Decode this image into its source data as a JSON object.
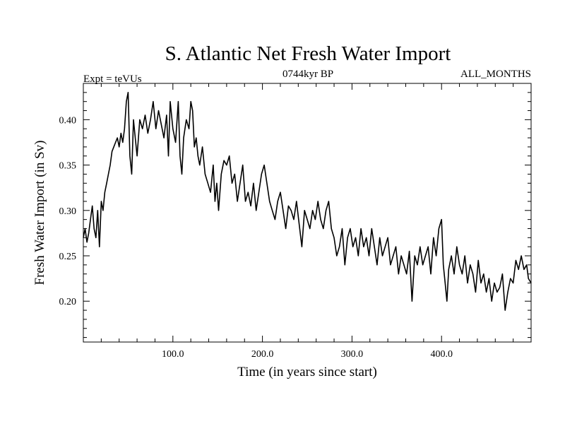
{
  "chart_data": {
    "type": "line",
    "title": "S. Atlantic Net Fresh Water Import",
    "subtitle_left": "Expt = teVUs",
    "subtitle_center": "0744kyr BP",
    "subtitle_right": "ALL_MONTHS",
    "xlabel": "Time (in years since start)",
    "ylabel": "Fresh Water Import (in Sv)",
    "xlim": [
      0,
      500
    ],
    "ylim": [
      0.155,
      0.44
    ],
    "x_ticks": [
      100,
      200,
      300,
      400
    ],
    "x_tick_labels": [
      "100.0",
      "200.0",
      "300.0",
      "400.0"
    ],
    "y_ticks": [
      0.2,
      0.25,
      0.3,
      0.35,
      0.4
    ],
    "y_tick_labels": [
      "0.20",
      "0.25",
      "0.30",
      "0.35",
      "0.40"
    ],
    "grid": false,
    "series": [
      {
        "points": [
          [
            0,
            0.27
          ],
          [
            2,
            0.28
          ],
          [
            4,
            0.265
          ],
          [
            6,
            0.275
          ],
          [
            8,
            0.29
          ],
          [
            10,
            0.305
          ],
          [
            12,
            0.28
          ],
          [
            14,
            0.27
          ],
          [
            16,
            0.3
          ],
          [
            18,
            0.26
          ],
          [
            20,
            0.31
          ],
          [
            22,
            0.3
          ],
          [
            24,
            0.32
          ],
          [
            26,
            0.33
          ],
          [
            28,
            0.34
          ],
          [
            30,
            0.35
          ],
          [
            32,
            0.365
          ],
          [
            34,
            0.37
          ],
          [
            36,
            0.375
          ],
          [
            38,
            0.38
          ],
          [
            40,
            0.37
          ],
          [
            42,
            0.385
          ],
          [
            44,
            0.375
          ],
          [
            46,
            0.39
          ],
          [
            48,
            0.42
          ],
          [
            50,
            0.43
          ],
          [
            52,
            0.36
          ],
          [
            54,
            0.34
          ],
          [
            56,
            0.4
          ],
          [
            58,
            0.38
          ],
          [
            60,
            0.36
          ],
          [
            63,
            0.4
          ],
          [
            66,
            0.39
          ],
          [
            69,
            0.405
          ],
          [
            72,
            0.385
          ],
          [
            75,
            0.4
          ],
          [
            78,
            0.42
          ],
          [
            81,
            0.39
          ],
          [
            84,
            0.41
          ],
          [
            87,
            0.395
          ],
          [
            90,
            0.38
          ],
          [
            93,
            0.405
          ],
          [
            95,
            0.36
          ],
          [
            97,
            0.42
          ],
          [
            100,
            0.39
          ],
          [
            103,
            0.375
          ],
          [
            106,
            0.42
          ],
          [
            108,
            0.36
          ],
          [
            110,
            0.34
          ],
          [
            112,
            0.38
          ],
          [
            115,
            0.4
          ],
          [
            118,
            0.39
          ],
          [
            120,
            0.42
          ],
          [
            122,
            0.41
          ],
          [
            124,
            0.37
          ],
          [
            126,
            0.38
          ],
          [
            128,
            0.36
          ],
          [
            130,
            0.35
          ],
          [
            133,
            0.37
          ],
          [
            136,
            0.34
          ],
          [
            139,
            0.33
          ],
          [
            142,
            0.32
          ],
          [
            145,
            0.35
          ],
          [
            147,
            0.31
          ],
          [
            149,
            0.33
          ],
          [
            151,
            0.3
          ],
          [
            154,
            0.34
          ],
          [
            157,
            0.355
          ],
          [
            160,
            0.35
          ],
          [
            163,
            0.36
          ],
          [
            166,
            0.33
          ],
          [
            169,
            0.34
          ],
          [
            172,
            0.31
          ],
          [
            175,
            0.33
          ],
          [
            178,
            0.35
          ],
          [
            181,
            0.31
          ],
          [
            184,
            0.32
          ],
          [
            187,
            0.305
          ],
          [
            190,
            0.33
          ],
          [
            193,
            0.3
          ],
          [
            196,
            0.32
          ],
          [
            199,
            0.34
          ],
          [
            202,
            0.35
          ],
          [
            205,
            0.33
          ],
          [
            208,
            0.31
          ],
          [
            211,
            0.3
          ],
          [
            214,
            0.29
          ],
          [
            217,
            0.31
          ],
          [
            220,
            0.32
          ],
          [
            223,
            0.3
          ],
          [
            226,
            0.28
          ],
          [
            229,
            0.305
          ],
          [
            232,
            0.3
          ],
          [
            235,
            0.29
          ],
          [
            238,
            0.31
          ],
          [
            241,
            0.285
          ],
          [
            244,
            0.26
          ],
          [
            247,
            0.3
          ],
          [
            250,
            0.29
          ],
          [
            253,
            0.28
          ],
          [
            256,
            0.3
          ],
          [
            259,
            0.29
          ],
          [
            262,
            0.31
          ],
          [
            265,
            0.29
          ],
          [
            268,
            0.28
          ],
          [
            271,
            0.3
          ],
          [
            274,
            0.31
          ],
          [
            277,
            0.28
          ],
          [
            280,
            0.27
          ],
          [
            283,
            0.25
          ],
          [
            286,
            0.26
          ],
          [
            289,
            0.28
          ],
          [
            292,
            0.24
          ],
          [
            295,
            0.27
          ],
          [
            298,
            0.28
          ],
          [
            301,
            0.26
          ],
          [
            304,
            0.27
          ],
          [
            307,
            0.25
          ],
          [
            310,
            0.28
          ],
          [
            313,
            0.26
          ],
          [
            316,
            0.27
          ],
          [
            319,
            0.25
          ],
          [
            322,
            0.28
          ],
          [
            325,
            0.26
          ],
          [
            328,
            0.24
          ],
          [
            331,
            0.27
          ],
          [
            334,
            0.25
          ],
          [
            337,
            0.26
          ],
          [
            340,
            0.27
          ],
          [
            343,
            0.24
          ],
          [
            346,
            0.25
          ],
          [
            349,
            0.26
          ],
          [
            352,
            0.23
          ],
          [
            355,
            0.25
          ],
          [
            358,
            0.24
          ],
          [
            361,
            0.23
          ],
          [
            364,
            0.255
          ],
          [
            367,
            0.2
          ],
          [
            370,
            0.25
          ],
          [
            373,
            0.24
          ],
          [
            376,
            0.26
          ],
          [
            379,
            0.24
          ],
          [
            382,
            0.25
          ],
          [
            385,
            0.26
          ],
          [
            388,
            0.23
          ],
          [
            391,
            0.27
          ],
          [
            394,
            0.25
          ],
          [
            397,
            0.28
          ],
          [
            400,
            0.29
          ],
          [
            402,
            0.24
          ],
          [
            404,
            0.22
          ],
          [
            406,
            0.2
          ],
          [
            408,
            0.235
          ],
          [
            411,
            0.25
          ],
          [
            414,
            0.23
          ],
          [
            417,
            0.26
          ],
          [
            420,
            0.24
          ],
          [
            423,
            0.23
          ],
          [
            426,
            0.25
          ],
          [
            429,
            0.22
          ],
          [
            432,
            0.24
          ],
          [
            435,
            0.23
          ],
          [
            438,
            0.21
          ],
          [
            441,
            0.245
          ],
          [
            444,
            0.22
          ],
          [
            447,
            0.23
          ],
          [
            450,
            0.21
          ],
          [
            453,
            0.225
          ],
          [
            456,
            0.2
          ],
          [
            459,
            0.22
          ],
          [
            462,
            0.21
          ],
          [
            465,
            0.215
          ],
          [
            468,
            0.23
          ],
          [
            471,
            0.19
          ],
          [
            474,
            0.21
          ],
          [
            477,
            0.225
          ],
          [
            480,
            0.22
          ],
          [
            483,
            0.245
          ],
          [
            486,
            0.235
          ],
          [
            489,
            0.25
          ],
          [
            492,
            0.235
          ],
          [
            495,
            0.24
          ],
          [
            497,
            0.225
          ],
          [
            500,
            0.22
          ]
        ],
        "color": "#000000"
      }
    ]
  }
}
